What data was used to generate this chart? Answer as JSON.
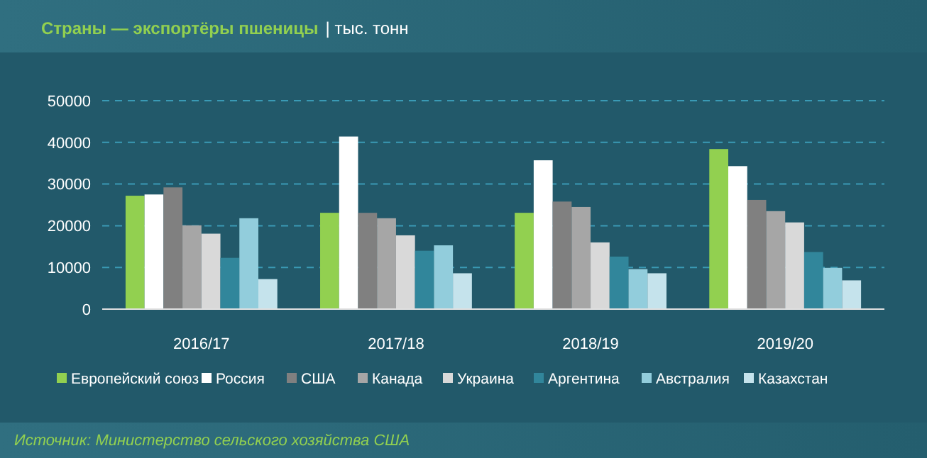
{
  "chart_data": {
    "type": "bar",
    "title": "Страны — экспортёры пшеницы",
    "subtitle": "| тыс. тонн",
    "categories": [
      "2016/17",
      "2017/18",
      "2018/19",
      "2019/20"
    ],
    "series": [
      {
        "name": "Европейский союз",
        "color": "#92d050",
        "values": [
          27200,
          23100,
          23100,
          38400
        ]
      },
      {
        "name": "Россия",
        "color": "#ffffff",
        "values": [
          27500,
          41400,
          35700,
          34300
        ]
      },
      {
        "name": "США",
        "color": "#808080",
        "values": [
          29200,
          23100,
          25800,
          26200
        ]
      },
      {
        "name": "Канада",
        "color": "#a6a6a6",
        "values": [
          20100,
          21800,
          24500,
          23500
        ]
      },
      {
        "name": "Украина",
        "color": "#d9d9d9",
        "values": [
          18100,
          17700,
          16000,
          20800
        ]
      },
      {
        "name": "Аргентина",
        "color": "#31869b",
        "values": [
          12300,
          14000,
          12600,
          13700
        ]
      },
      {
        "name": "Австралия",
        "color": "#92cddc",
        "values": [
          21800,
          15300,
          9600,
          9900
        ]
      },
      {
        "name": "Казахстан",
        "color": "#c5e3ec",
        "values": [
          7200,
          8600,
          8600,
          6900
        ]
      }
    ],
    "ylim": [
      0,
      50000
    ],
    "yticks": [
      0,
      10000,
      20000,
      30000,
      40000,
      50000
    ],
    "grid": "y",
    "legend": "bottom",
    "annotations": [
      "Источник: Министерство сельского хозяйства США"
    ]
  }
}
